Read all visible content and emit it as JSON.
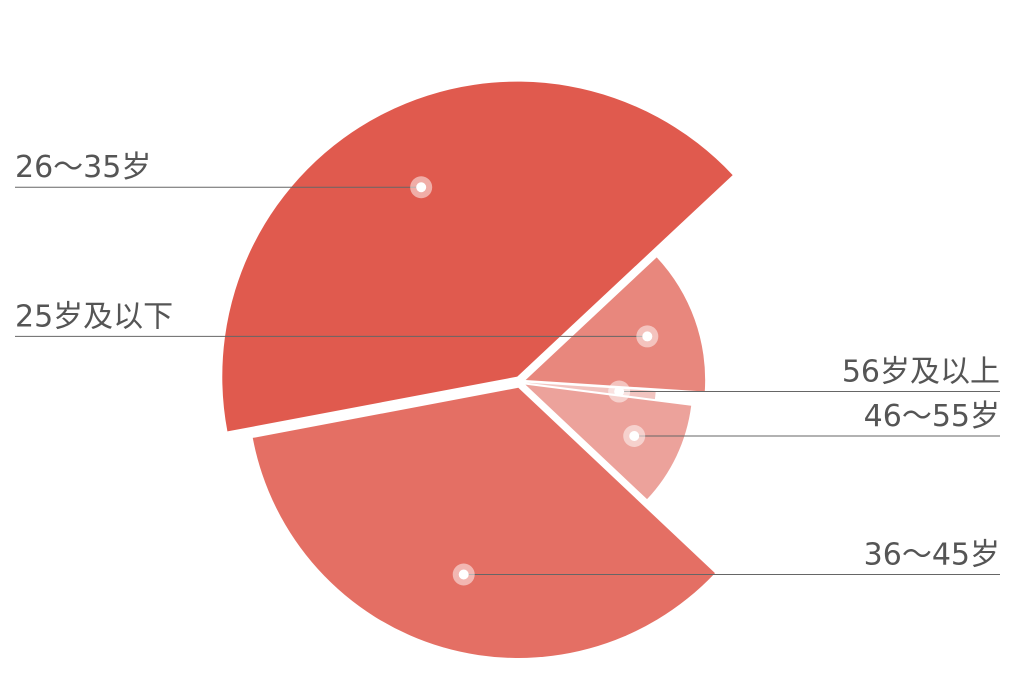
{
  "chart_data": {
    "type": "pie",
    "rose_type": "radius",
    "start_angle": 169.3,
    "categories": [
      "26～35岁",
      "25岁及以下",
      "56岁及以上",
      "46～55岁",
      "36～45岁"
    ],
    "values": [
      41,
      13,
      1,
      10,
      35
    ],
    "colors": [
      "#e05a4e",
      "#e8877d",
      "#f2c4c0",
      "#eca29b",
      "#e46f64"
    ],
    "label_sides": [
      "left",
      "left",
      "right",
      "right",
      "right"
    ]
  }
}
